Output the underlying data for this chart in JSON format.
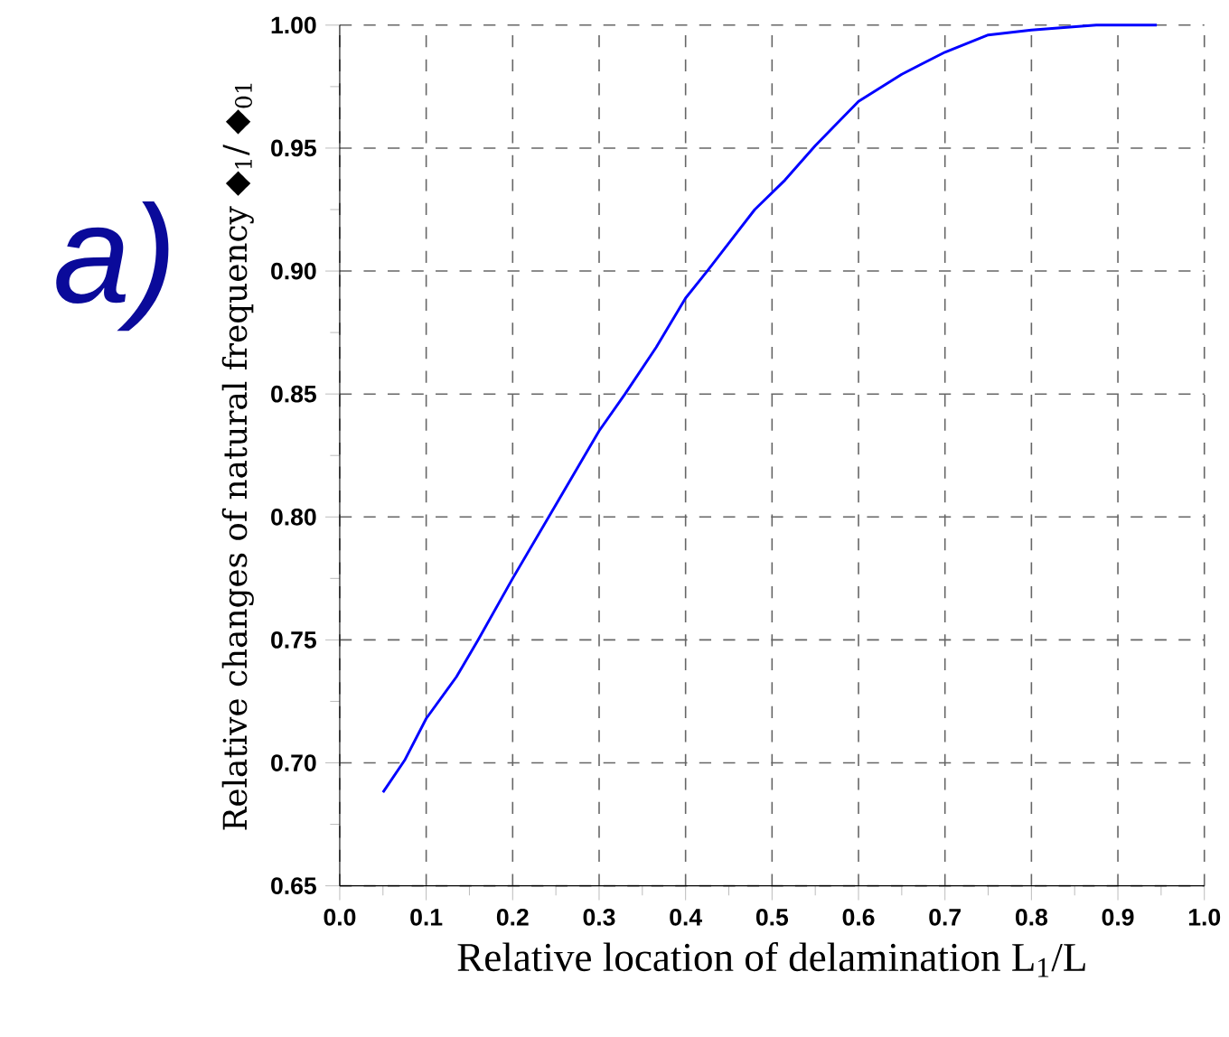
{
  "chart_data": {
    "type": "line",
    "xlabel": "Relative location of delamination L$_{1}$/L",
    "ylabel": "Relative changes of  natural frequency ◆$_{1}$/ ◆$_{01}$",
    "annotations": [
      "a)"
    ],
    "x": [
      0.05,
      0.075,
      0.1,
      0.135,
      0.16,
      0.2,
      0.25,
      0.3,
      0.33,
      0.366,
      0.4,
      0.425,
      0.48,
      0.515,
      0.55,
      0.6,
      0.65,
      0.7,
      0.75,
      0.8,
      0.875,
      0.945
    ],
    "series": [
      {
        "color": "#0000ff",
        "values": [
          0.688,
          0.701,
          0.718,
          0.735,
          0.75,
          0.775,
          0.805,
          0.835,
          0.85,
          0.869,
          0.889,
          0.9,
          0.925,
          0.937,
          0.951,
          0.969,
          0.98,
          0.989,
          0.996,
          0.998,
          1.0,
          1.0
        ]
      }
    ],
    "xlim": [
      0,
      1
    ],
    "ylim": [
      0.65,
      1.0
    ],
    "xticks": [
      {
        "value": 0,
        "label": "0.0"
      },
      0.1,
      0.2,
      0.3,
      0.4,
      0.5,
      0.6,
      0.7,
      0.8,
      0.9,
      {
        "value": 1,
        "label": "1.0"
      }
    ],
    "yticks": [
      0.65,
      {
        "value": 0.7,
        "label": "0.70"
      },
      0.75,
      {
        "value": 0.8,
        "label": "0.80"
      },
      0.85,
      {
        "value": 0.9,
        "label": "0.90"
      },
      0.95,
      {
        "value": 1,
        "label": "1.00"
      }
    ],
    "grid": true,
    "marker": "none",
    "line_style": "solid"
  }
}
